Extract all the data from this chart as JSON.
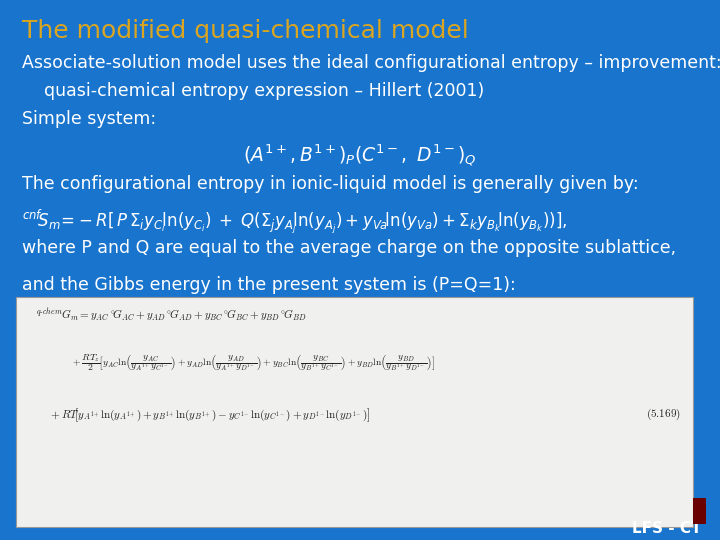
{
  "bg_color": "#1874CD",
  "title": "The modified quasi-chemical model",
  "title_color": "#DAA520",
  "title_fontsize": 18,
  "text_color": "#FFFFFF",
  "body_fontsize": 12.5,
  "footer": "LFS - CT",
  "line1": "Associate-solution model uses the ideal configurational entropy – improvement:",
  "line2": "    quasi-chemical entropy expression – Hillert (2001)",
  "line3": "Simple system:",
  "line5": "The configurational entropy in ionic-liquid model is generally given by:",
  "line7": "where P and Q are equal to the average charge on the opposite sublattice,",
  "line8": "and the Gibbs energy in the present system is (P=Q=1):",
  "box_facecolor": "#F0F0EE",
  "eq_color": "#222222",
  "dark_red": "#6B0000"
}
